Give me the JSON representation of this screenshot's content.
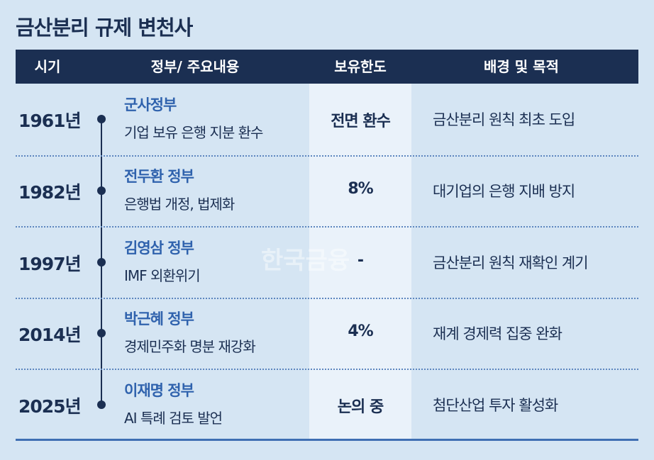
{
  "header": {
    "title": "금산분리 규제 변천사"
  },
  "table": {
    "columns": [
      "시기",
      "정부/ 주요내용",
      "보유한도",
      "배경 및 목적"
    ],
    "rows": [
      {
        "year": "1961년",
        "government": "군사정부",
        "content": "기업 보유 은행 지분 환수",
        "limit": "전면 환수",
        "purpose": "금산분리 원칙 최초 도입"
      },
      {
        "year": "1982년",
        "government": "전두환 정부",
        "content": "은행법 개정, 법제화",
        "limit": "8%",
        "purpose": "대기업의 은행 지배 방지"
      },
      {
        "year": "1997년",
        "government": "김영삼 정부",
        "content": "IMF 외환위기",
        "limit": "-",
        "purpose": "금산분리 원칙 재확인 계기"
      },
      {
        "year": "2014년",
        "government": "박근혜 정부",
        "content": "경제민주화 명분 재강화",
        "limit": "4%",
        "purpose": "재계 경제력 집중 완화"
      },
      {
        "year": "2025년",
        "government": "이재명 정부",
        "content": "AI 특례 검토 발언",
        "limit": "논의 중",
        "purpose": "첨단산업 투자 활성화"
      }
    ]
  },
  "watermark": "한국금융"
}
